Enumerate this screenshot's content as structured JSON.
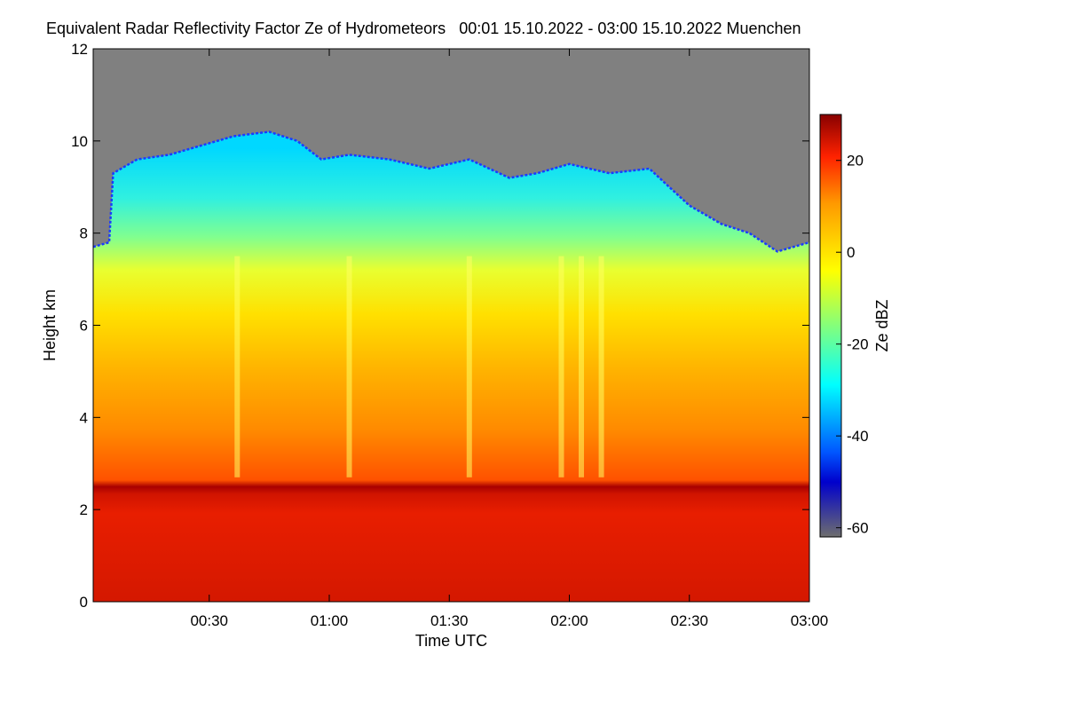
{
  "chart_data": {
    "type": "heatmap",
    "title": "Equivalent Radar Reflectivity Factor Ze of Hydrometeors",
    "period": "00:01 15.10.2022 - 03:00 15.10.2022",
    "location": "Muenchen",
    "xlabel": "Time UTC",
    "ylabel": "Height km",
    "x_ticks": [
      "00:30",
      "01:00",
      "01:30",
      "02:00",
      "02:30",
      "03:00"
    ],
    "x_tick_minutes": [
      30,
      60,
      90,
      120,
      150,
      180
    ],
    "xlim_minutes": [
      1,
      180
    ],
    "y_ticks": [
      0,
      2,
      4,
      6,
      8,
      10,
      12
    ],
    "ylim": [
      0,
      12
    ],
    "colorbar": {
      "label": "Ze dBZ",
      "ticks": [
        20,
        0,
        -20,
        -40,
        -60
      ],
      "range": [
        -62,
        30
      ],
      "no_signal_color": "#808080",
      "colors": [
        "#6e6e6e",
        "#0000cc",
        "#0055ff",
        "#00ffff",
        "#ffff00",
        "#ff9900",
        "#ff2200",
        "#880000"
      ]
    },
    "echo_top_km": [
      [
        1,
        7.7
      ],
      [
        5,
        7.8
      ],
      [
        6,
        9.3
      ],
      [
        12,
        9.6
      ],
      [
        20,
        9.7
      ],
      [
        28,
        9.9
      ],
      [
        36,
        10.1
      ],
      [
        45,
        10.2
      ],
      [
        52,
        10.0
      ],
      [
        58,
        9.6
      ],
      [
        65,
        9.7
      ],
      [
        75,
        9.6
      ],
      [
        85,
        9.4
      ],
      [
        95,
        9.6
      ],
      [
        105,
        9.2
      ],
      [
        112,
        9.3
      ],
      [
        120,
        9.5
      ],
      [
        130,
        9.3
      ],
      [
        140,
        9.4
      ],
      [
        145,
        9.0
      ],
      [
        150,
        8.6
      ],
      [
        158,
        8.2
      ],
      [
        165,
        8.0
      ],
      [
        172,
        7.6
      ],
      [
        180,
        7.8
      ]
    ],
    "bright_band_km": 2.5,
    "fall_streak_minutes": [
      37,
      65,
      95,
      118,
      123,
      128
    ]
  }
}
